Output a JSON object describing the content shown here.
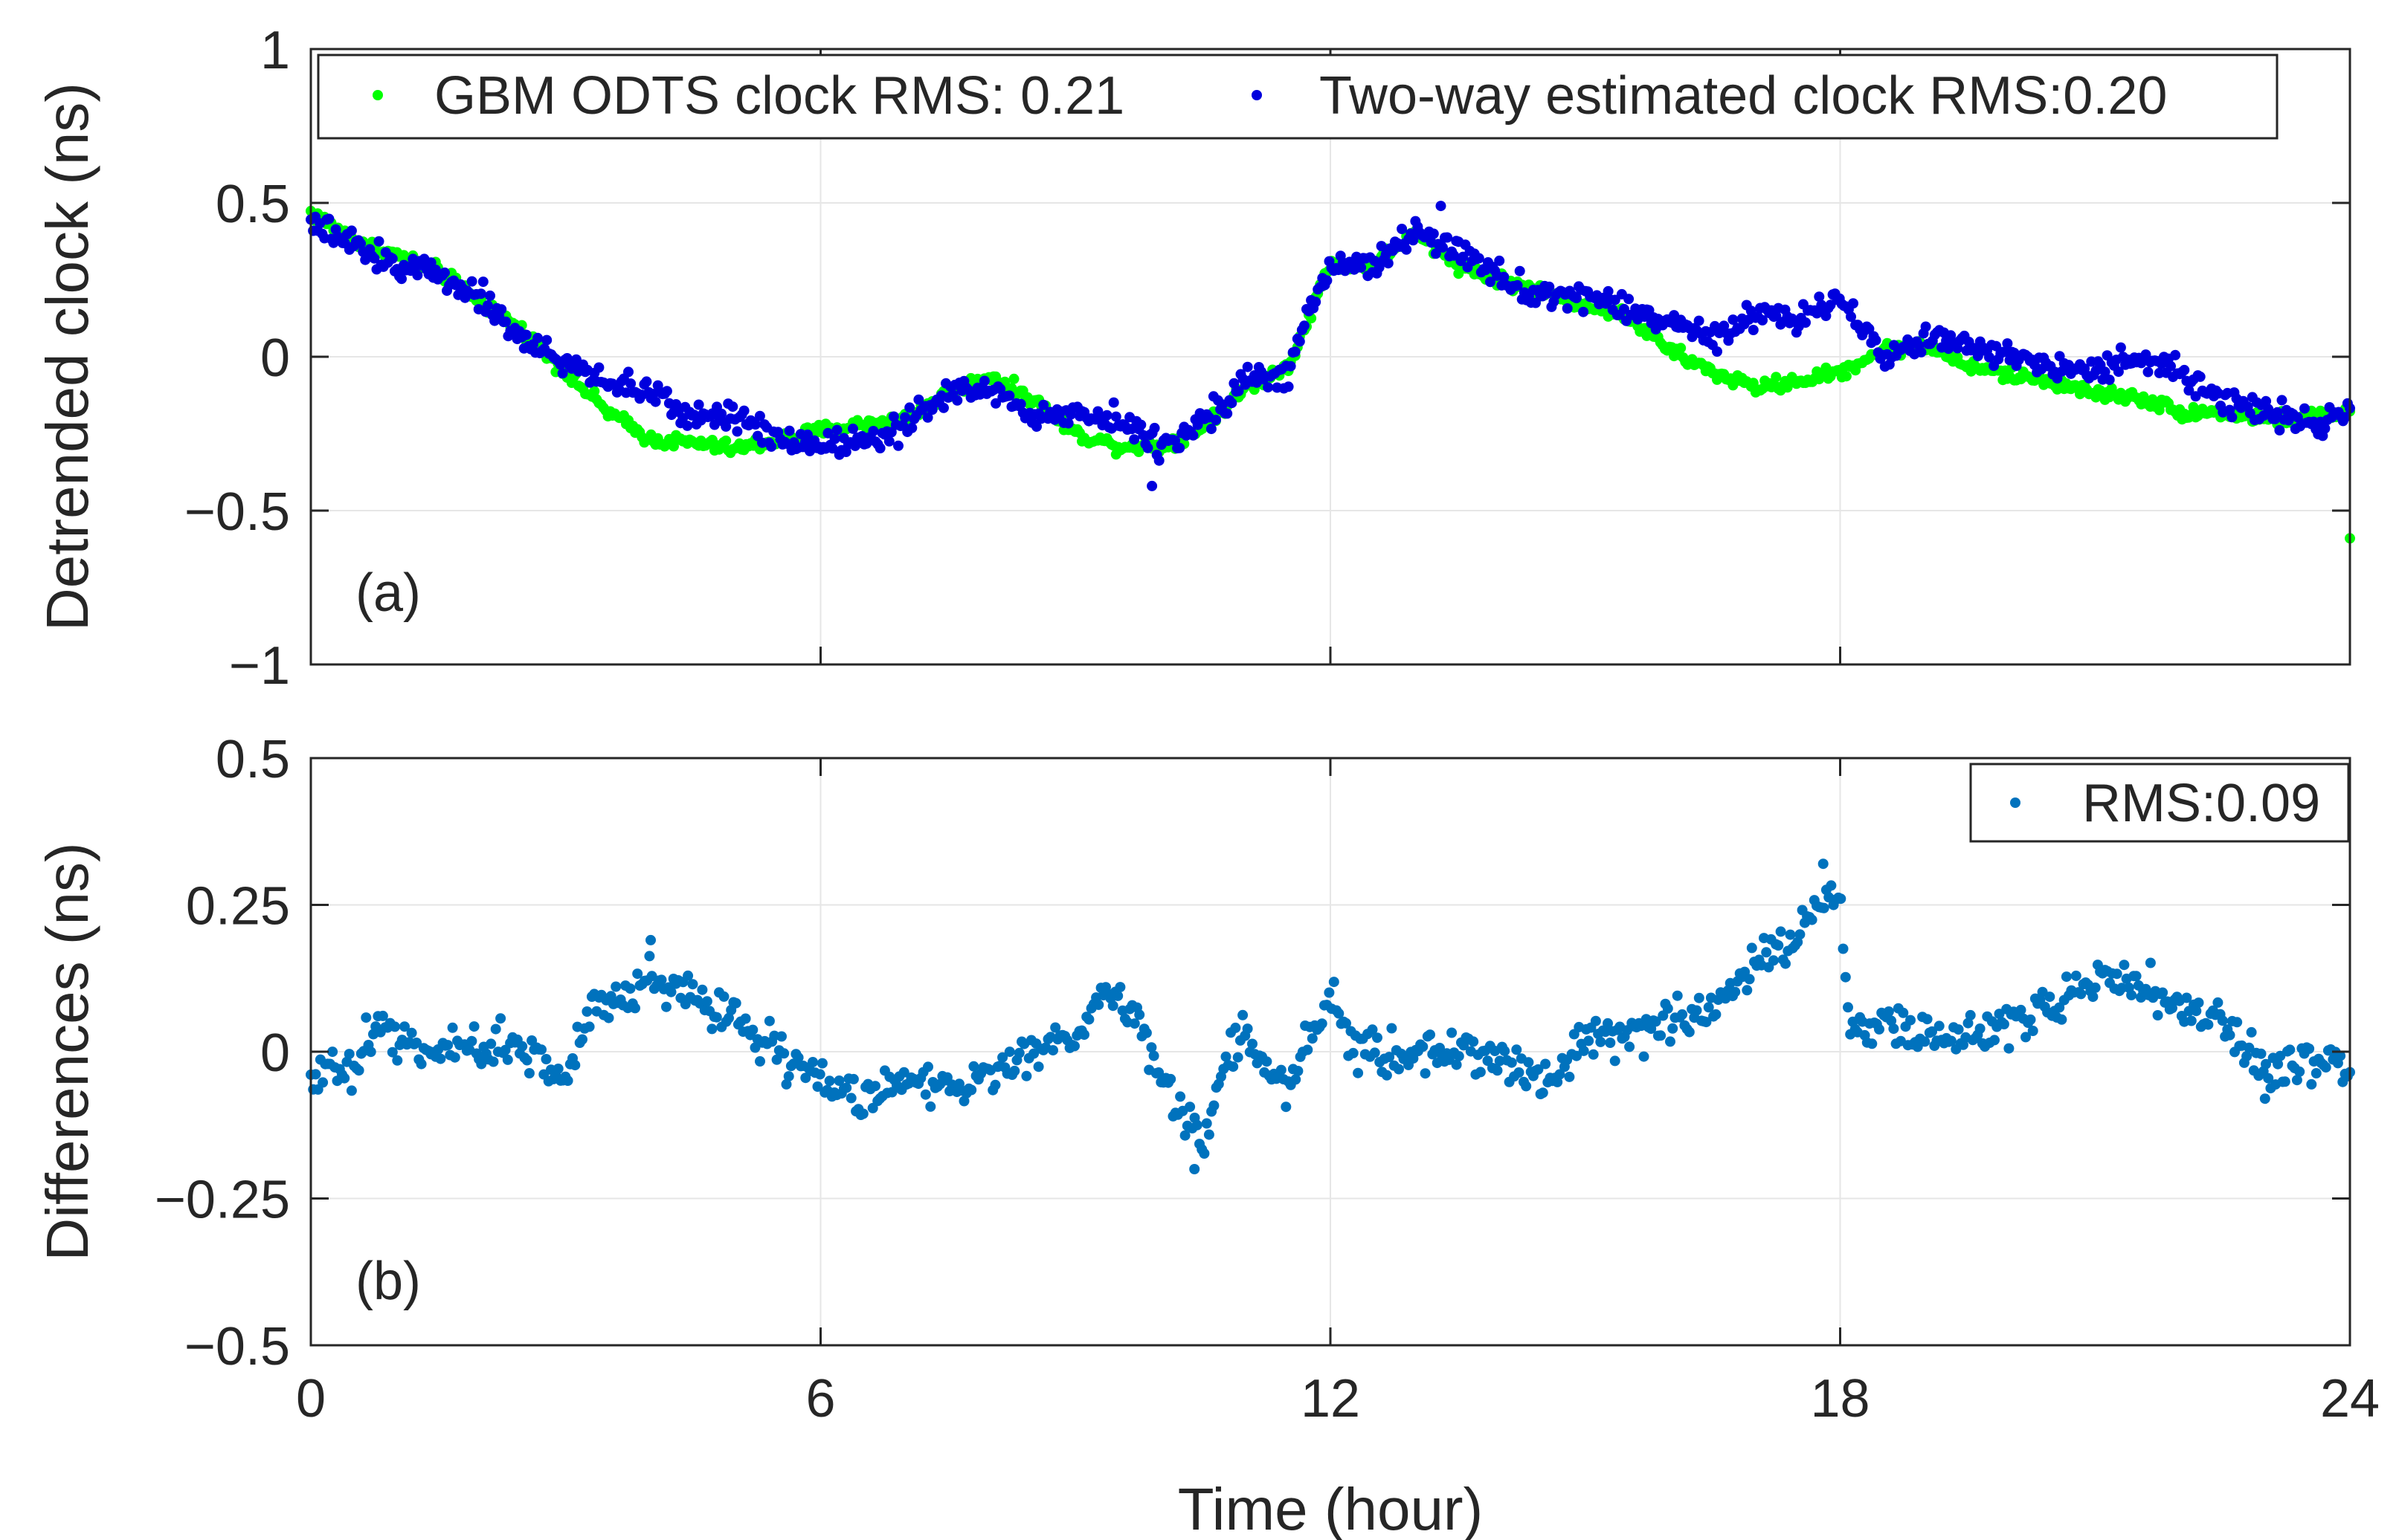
{
  "chart_data": [
    {
      "type": "scatter",
      "panel_label": "(a)",
      "ylabel": "Detrended clock (ns)",
      "xlabel": "",
      "xlim": [
        0,
        24
      ],
      "ylim": [
        -1,
        1
      ],
      "x_ticks": [
        0,
        6,
        12,
        18,
        24
      ],
      "y_ticks": [
        -1,
        -0.5,
        0,
        0.5,
        1
      ],
      "y_tick_labels": [
        "−1",
        "−0.5",
        "0",
        "0.5",
        "1"
      ],
      "grid": true,
      "legend_position": "top",
      "series": [
        {
          "name": "GBM ODTS clock RMS: 0.21",
          "color": "#00ff00",
          "anchors": [
            [
              0,
              0.47
            ],
            [
              0.5,
              0.38
            ],
            [
              1,
              0.33
            ],
            [
              1.5,
              0.28
            ],
            [
              2,
              0.18
            ],
            [
              2.5,
              0.08
            ],
            [
              3,
              -0.05
            ],
            [
              3.5,
              -0.18
            ],
            [
              4,
              -0.27
            ],
            [
              4.5,
              -0.28
            ],
            [
              5,
              -0.3
            ],
            [
              5.5,
              -0.27
            ],
            [
              6,
              -0.24
            ],
            [
              6.5,
              -0.22
            ],
            [
              7,
              -0.2
            ],
            [
              7.5,
              -0.12
            ],
            [
              8,
              -0.06
            ],
            [
              8.5,
              -0.14
            ],
            [
              9,
              -0.25
            ],
            [
              9.5,
              -0.29
            ],
            [
              10,
              -0.29
            ],
            [
              10.5,
              -0.23
            ],
            [
              11,
              -0.1
            ],
            [
              11.5,
              -0.03
            ],
            [
              12,
              0.3
            ],
            [
              12.5,
              0.3
            ],
            [
              13,
              0.4
            ],
            [
              13.5,
              0.3
            ],
            [
              14,
              0.25
            ],
            [
              14.5,
              0.21
            ],
            [
              15,
              0.17
            ],
            [
              15.5,
              0.13
            ],
            [
              16,
              0.02
            ],
            [
              16.5,
              -0.05
            ],
            [
              17,
              -0.1
            ],
            [
              17.5,
              -0.08
            ],
            [
              18,
              -0.05
            ],
            [
              18.5,
              0.02
            ],
            [
              19,
              0.04
            ],
            [
              19.5,
              -0.03
            ],
            [
              20,
              -0.06
            ],
            [
              20.5,
              -0.08
            ],
            [
              21,
              -0.12
            ],
            [
              21.5,
              -0.13
            ],
            [
              22,
              -0.18
            ],
            [
              22.5,
              -0.18
            ],
            [
              23,
              -0.2
            ],
            [
              23.5,
              -0.2
            ],
            [
              24,
              -0.18
            ]
          ],
          "outliers": [
            [
              24,
              -0.59
            ]
          ],
          "noise": 0.015
        },
        {
          "name": "Two-way estimated clock RMS:0.20",
          "color": "#0000dd",
          "anchors": [
            [
              0,
              0.43
            ],
            [
              0.5,
              0.36
            ],
            [
              1,
              0.3
            ],
            [
              1.5,
              0.27
            ],
            [
              2,
              0.2
            ],
            [
              2.5,
              0.05
            ],
            [
              3,
              -0.02
            ],
            [
              3.5,
              -0.08
            ],
            [
              4,
              -0.12
            ],
            [
              4.5,
              -0.2
            ],
            [
              5,
              -0.18
            ],
            [
              5.5,
              -0.27
            ],
            [
              6,
              -0.28
            ],
            [
              6.5,
              -0.27
            ],
            [
              7,
              -0.22
            ],
            [
              7.5,
              -0.12
            ],
            [
              8,
              -0.1
            ],
            [
              8.5,
              -0.2
            ],
            [
              9,
              -0.18
            ],
            [
              9.5,
              -0.2
            ],
            [
              10,
              -0.3
            ],
            [
              10.5,
              -0.2
            ],
            [
              11,
              -0.08
            ],
            [
              11.5,
              -0.05
            ],
            [
              12,
              0.3
            ],
            [
              12.5,
              0.3
            ],
            [
              13,
              0.4
            ],
            [
              13.5,
              0.35
            ],
            [
              14,
              0.25
            ],
            [
              14.5,
              0.2
            ],
            [
              15,
              0.2
            ],
            [
              15.5,
              0.15
            ],
            [
              16,
              0.12
            ],
            [
              16.5,
              0.05
            ],
            [
              17,
              0.13
            ],
            [
              17.5,
              0.12
            ],
            [
              18,
              0.2
            ],
            [
              18.5,
              0.0
            ],
            [
              19,
              0.05
            ],
            [
              19.5,
              0.05
            ],
            [
              20,
              0.0
            ],
            [
              20.5,
              -0.02
            ],
            [
              21,
              -0.05
            ],
            [
              21.5,
              0.0
            ],
            [
              22,
              -0.05
            ],
            [
              22.5,
              -0.13
            ],
            [
              23,
              -0.18
            ],
            [
              23.5,
              -0.22
            ],
            [
              24,
              -0.18
            ]
          ],
          "outliers": [
            [
              9.9,
              -0.42
            ],
            [
              13.3,
              0.49
            ]
          ],
          "noise": 0.03
        }
      ]
    },
    {
      "type": "scatter",
      "panel_label": "(b)",
      "ylabel": "Differences (ns)",
      "xlabel": "Time (hour)",
      "xlim": [
        0,
        24
      ],
      "ylim": [
        -0.5,
        0.5
      ],
      "x_ticks": [
        0,
        6,
        12,
        18,
        24
      ],
      "x_tick_labels": [
        "0",
        "6",
        "12",
        "18",
        "24"
      ],
      "y_ticks": [
        -0.5,
        -0.25,
        0,
        0.25,
        0.5
      ],
      "y_tick_labels": [
        "−0.5",
        "−0.25",
        "0",
        "0.25",
        "0.5"
      ],
      "grid": true,
      "legend_position": "top-right",
      "series": [
        {
          "name": "RMS:0.09",
          "color": "#0072bd",
          "anchors": [
            [
              0,
              -0.03
            ],
            [
              0.5,
              -0.03
            ],
            [
              0.8,
              0.05
            ],
            [
              1,
              0.02
            ],
            [
              1.5,
              0.0
            ],
            [
              2,
              0.0
            ],
            [
              2.3,
              0.03
            ],
            [
              2.7,
              -0.02
            ],
            [
              3,
              -0.05
            ],
            [
              3.3,
              0.08
            ],
            [
              3.7,
              0.1
            ],
            [
              4,
              0.12
            ],
            [
              4.5,
              0.1
            ],
            [
              5,
              0.06
            ],
            [
              5.5,
              0.0
            ],
            [
              6,
              -0.05
            ],
            [
              6.5,
              -0.08
            ],
            [
              7,
              -0.04
            ],
            [
              7.5,
              -0.06
            ],
            [
              8,
              -0.05
            ],
            [
              8.5,
              0.0
            ],
            [
              9,
              0.02
            ],
            [
              9.3,
              0.1
            ],
            [
              9.7,
              0.08
            ],
            [
              10,
              -0.05
            ],
            [
              10.3,
              -0.12
            ],
            [
              10.5,
              -0.15
            ],
            [
              10.8,
              0.0
            ],
            [
              11,
              0.02
            ],
            [
              11.3,
              -0.03
            ],
            [
              11.5,
              -0.06
            ],
            [
              12,
              0.1
            ],
            [
              12.3,
              0.0
            ],
            [
              12.7,
              -0.01
            ],
            [
              13,
              0.0
            ],
            [
              13.5,
              0.0
            ],
            [
              14,
              -0.01
            ],
            [
              14.5,
              -0.05
            ],
            [
              15,
              0.03
            ],
            [
              15.5,
              0.02
            ],
            [
              16,
              0.05
            ],
            [
              16.5,
              0.08
            ],
            [
              17,
              0.15
            ],
            [
              17.5,
              0.2
            ],
            [
              18,
              0.28
            ],
            [
              18.1,
              0.05
            ],
            [
              18.5,
              0.05
            ],
            [
              19,
              0.03
            ],
            [
              19.5,
              0.02
            ],
            [
              20,
              0.05
            ],
            [
              20.5,
              0.08
            ],
            [
              21,
              0.12
            ],
            [
              21.5,
              0.12
            ],
            [
              22,
              0.08
            ],
            [
              22.5,
              0.05
            ],
            [
              23,
              -0.03
            ],
            [
              23.5,
              -0.02
            ],
            [
              24,
              -0.03
            ]
          ],
          "outliers": [
            [
              10.4,
              -0.2
            ],
            [
              4.0,
              0.19
            ],
            [
              17.8,
              0.32
            ],
            [
              23.0,
              -0.08
            ]
          ],
          "noise": 0.025
        }
      ]
    }
  ]
}
